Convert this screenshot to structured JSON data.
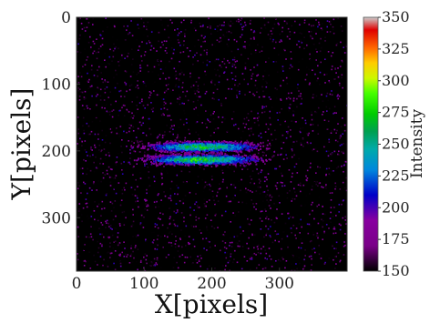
{
  "chart_data": {
    "type": "heatmap",
    "title": "",
    "xlabel": "X[pixels]",
    "ylabel": "Y[pixels]",
    "colorbar_label": "Intensity",
    "xlim": [
      0,
      400
    ],
    "ylim": [
      0,
      380
    ],
    "y_inverted": true,
    "x_ticks": [
      0,
      100,
      200,
      300
    ],
    "y_ticks": [
      0,
      100,
      200,
      300
    ],
    "colorbar_range": [
      150,
      350
    ],
    "colorbar_ticks": [
      150,
      175,
      200,
      225,
      250,
      275,
      300,
      325,
      350
    ],
    "colormap": "nipy_spectral",
    "background_value": 150,
    "grid": false,
    "features": [
      {
        "shape": "horizontal-band",
        "center_x": 185,
        "center_y": 193,
        "half_width_x": 95,
        "half_height_y": 7,
        "peak": 275
      },
      {
        "shape": "horizontal-band",
        "center_x": 185,
        "center_y": 212,
        "half_width_x": 95,
        "half_height_y": 7,
        "peak": 280
      }
    ],
    "noise": "sparse random speckle over whole field, mostly 150-200"
  }
}
